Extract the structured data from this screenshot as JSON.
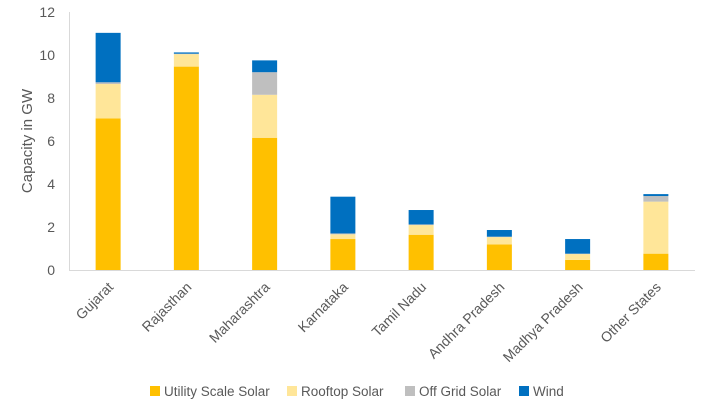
{
  "chart_data": {
    "type": "bar",
    "stacked": true,
    "title": "",
    "xlabel": "",
    "ylabel": "Capacity in GW",
    "ylim": [
      0,
      12
    ],
    "yticks": [
      0,
      2,
      4,
      6,
      8,
      10,
      12
    ],
    "grid": false,
    "legend_position": "bottom",
    "categories": [
      "Gujarat",
      "Rajasthan",
      "Maharashtra",
      "Karnataka",
      "Tamil Nadu",
      "Andhra Pradesh",
      "Madhya Pradesh",
      "Other States"
    ],
    "series": [
      {
        "name": "Utility Scale Solar",
        "color": "#FFC000",
        "values": [
          7.05,
          9.46,
          6.15,
          1.44,
          1.64,
          1.19,
          0.47,
          0.76
        ]
      },
      {
        "name": "Rooftop Solar",
        "color": "#FFE699",
        "values": [
          1.6,
          0.58,
          2.0,
          0.22,
          0.45,
          0.34,
          0.27,
          2.42
        ]
      },
      {
        "name": "Off Grid Solar",
        "color": "#BFBFBF",
        "values": [
          0.08,
          0.02,
          1.05,
          0.04,
          0.03,
          0.02,
          0.02,
          0.26
        ]
      },
      {
        "name": "Wind",
        "color": "#0070C0",
        "values": [
          2.3,
          0.06,
          0.55,
          1.71,
          0.67,
          0.31,
          0.68,
          0.09
        ]
      }
    ]
  }
}
